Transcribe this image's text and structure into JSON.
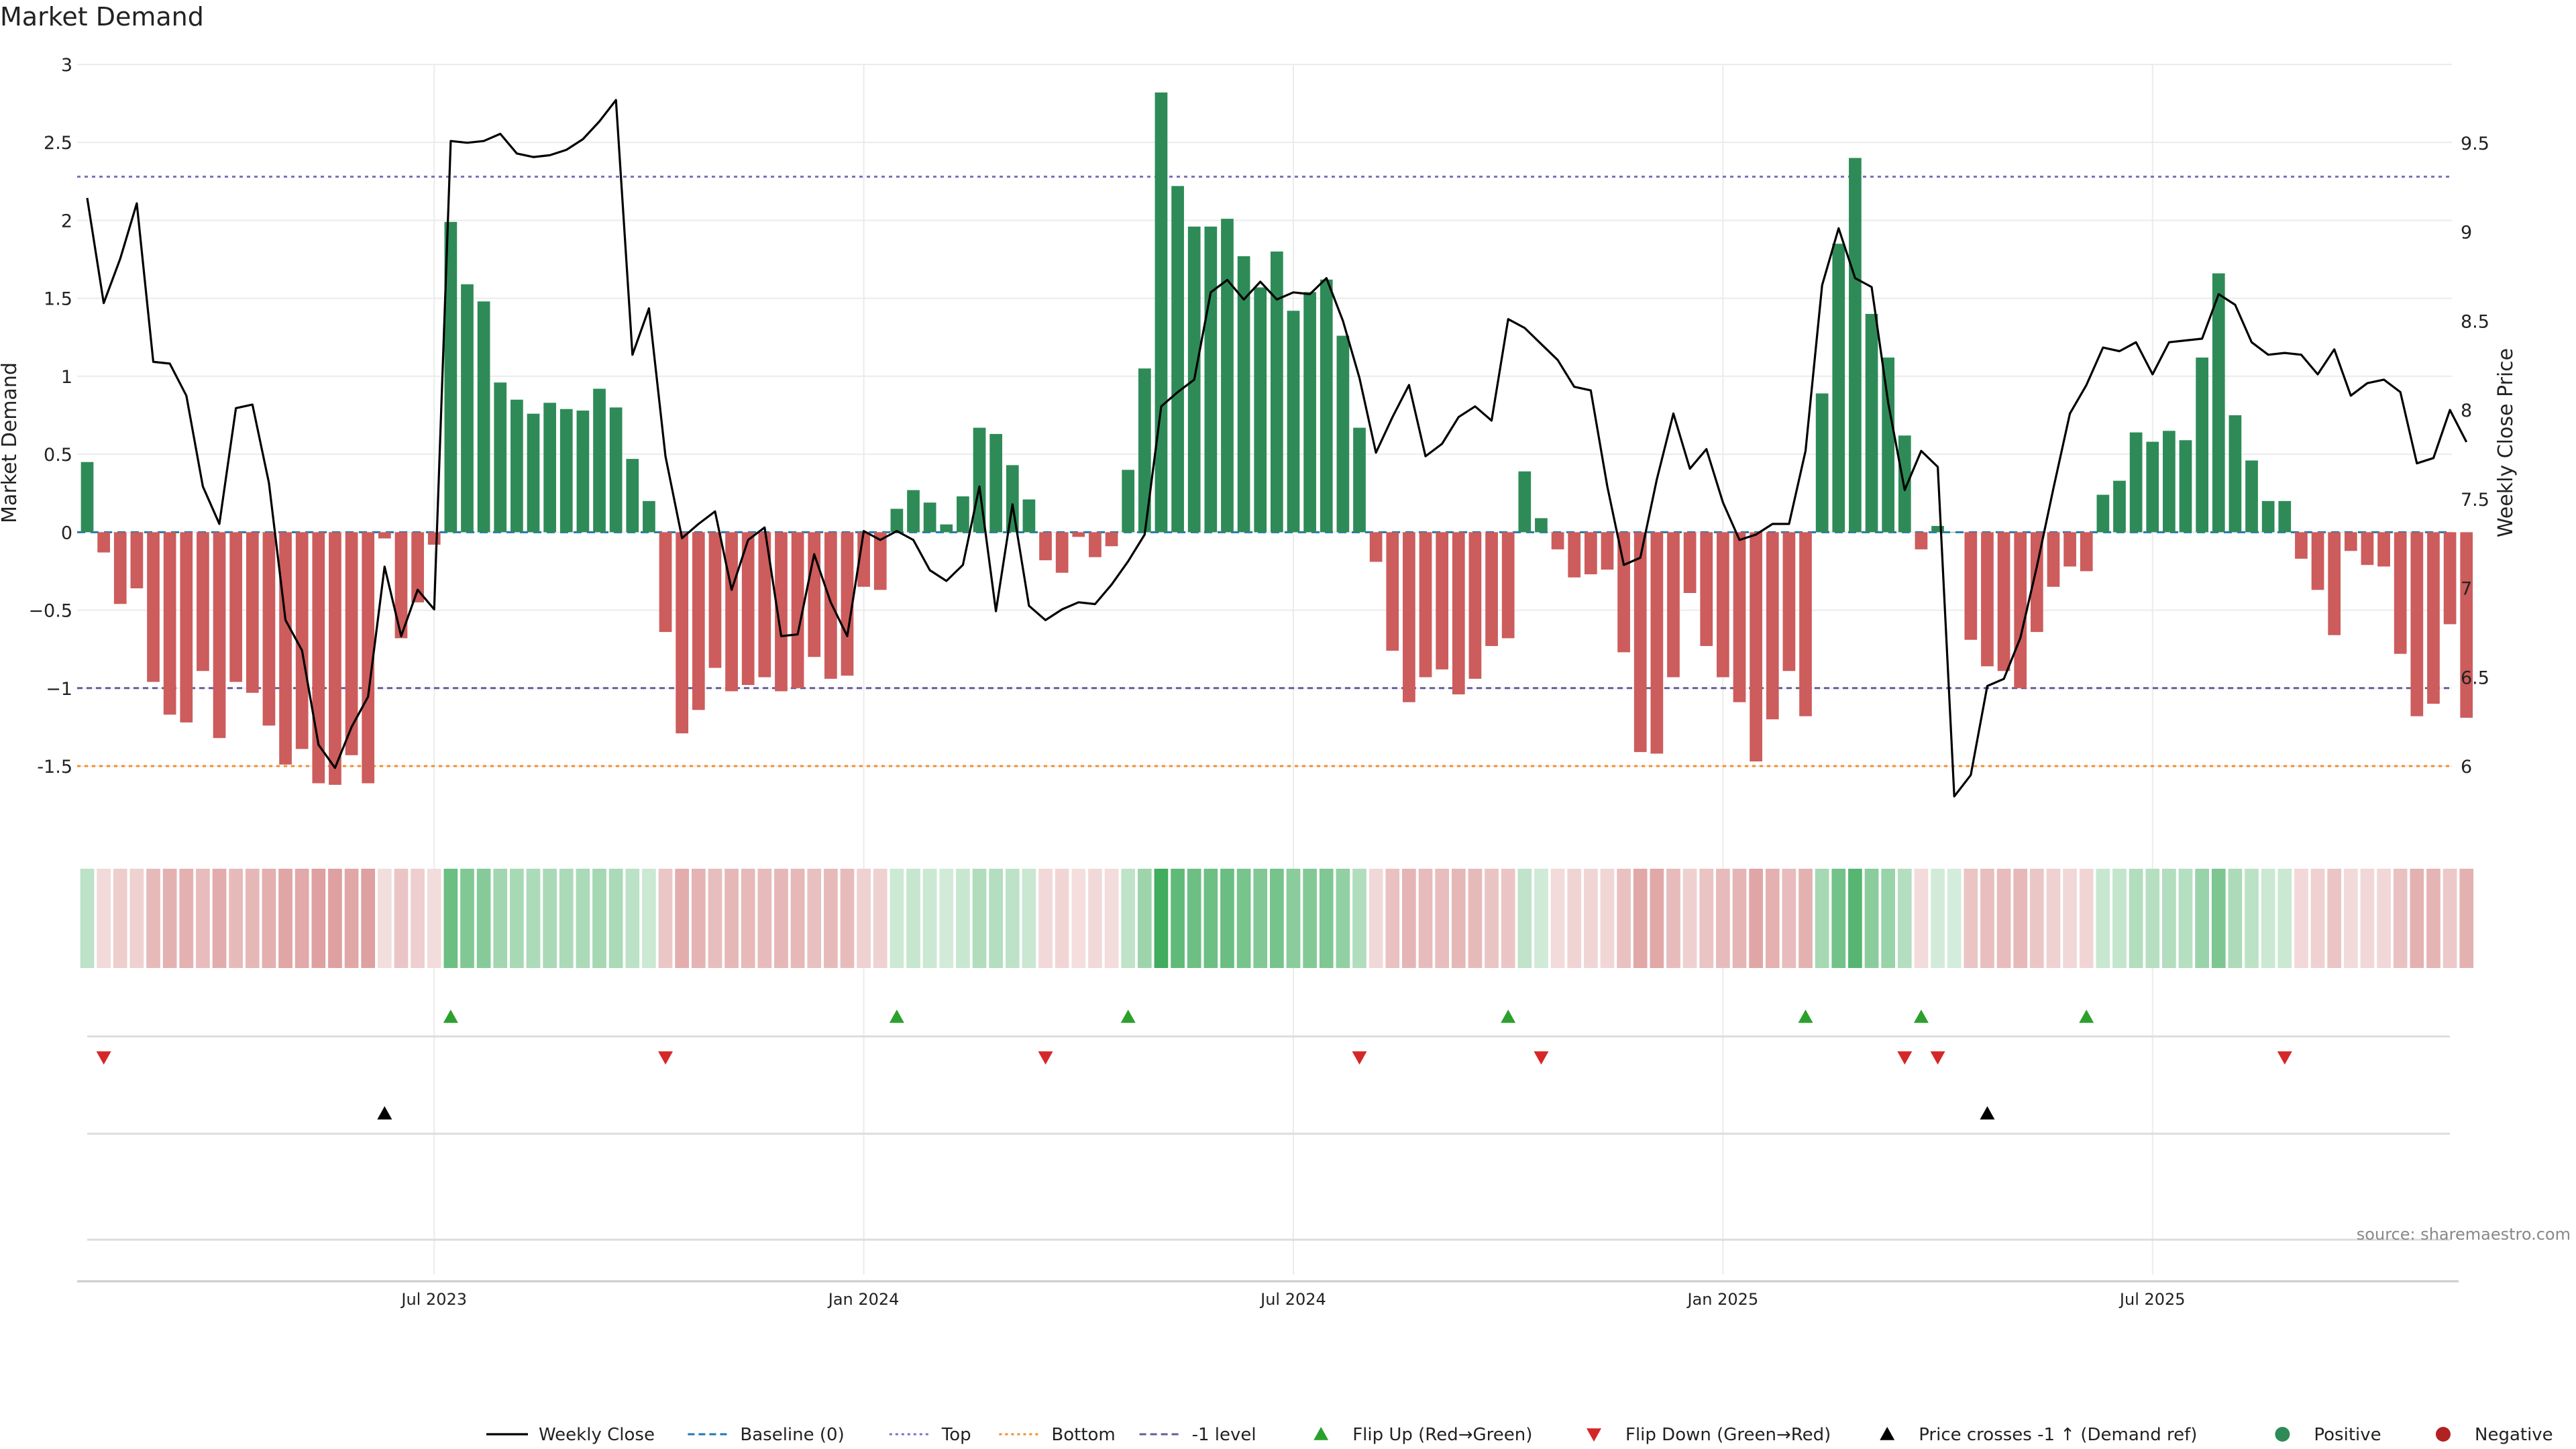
{
  "chart_data": {
    "type": "bar",
    "title": "Market Demand",
    "ylabel": "Market Demand",
    "y2label": "Weekly Close Price",
    "ylim": [
      -1.9,
      3.0
    ],
    "y2lim": [
      5.65,
      9.94
    ],
    "y_ticks": [
      "-1.5",
      "−1",
      "−0.5",
      "0",
      "0.5",
      "1",
      "1.5",
      "2",
      "2.5",
      "3"
    ],
    "y_tick_values": [
      -1.5,
      -1,
      -0.5,
      0,
      0.5,
      1,
      1.5,
      2,
      2.5,
      3
    ],
    "y2_ticks": [
      "6",
      "6.5",
      "7",
      "7.5",
      "8",
      "8.5",
      "9",
      "9.5"
    ],
    "y2_tick_values": [
      6,
      6.5,
      7,
      7.5,
      8,
      8.5,
      9,
      9.5
    ],
    "x_ticks": [
      "Jul 2023",
      "Jan 2024",
      "Jul 2024",
      "Jan 2025",
      "Jul 2025"
    ],
    "x_tick_week_index": [
      21,
      47,
      73,
      99,
      125
    ],
    "first_week": "2023-02-13",
    "grid": true,
    "reference_lines": [
      {
        "name": "Top",
        "value": 2.28,
        "color": "#7b6fbf",
        "style": "dotted"
      },
      {
        "name": "Bottom",
        "value": -1.5,
        "color": "#f28e2b",
        "style": "dotted"
      },
      {
        "name": "-1 level",
        "value": -1.0,
        "color": "#6a5a9a",
        "style": "dashed"
      },
      {
        "name": "Baseline (0)",
        "value": 0,
        "color": "#1f77b4",
        "style": "dashed"
      }
    ],
    "demand": [
      0.45,
      -0.13,
      -0.46,
      -0.36,
      -0.96,
      -1.17,
      -1.22,
      -0.89,
      -1.32,
      -0.96,
      -1.03,
      -1.24,
      -1.49,
      -1.39,
      -1.61,
      -1.62,
      -1.43,
      -1.61,
      -0.04,
      -0.68,
      -0.45,
      -0.08,
      1.99,
      1.59,
      1.48,
      0.96,
      0.85,
      0.76,
      0.83,
      0.79,
      0.78,
      0.92,
      0.8,
      0.47,
      0.2,
      -0.64,
      -1.29,
      -1.14,
      -0.87,
      -1.02,
      -0.98,
      -0.93,
      -1.02,
      -1.0,
      -0.8,
      -0.94,
      -0.92,
      -0.35,
      -0.37,
      0.15,
      0.27,
      0.19,
      0.05,
      0.23,
      0.67,
      0.63,
      0.43,
      0.21,
      -0.18,
      -0.26,
      -0.03,
      -0.16,
      -0.09,
      0.4,
      1.05,
      2.82,
      2.22,
      1.96,
      1.96,
      2.01,
      1.77,
      1.57,
      1.8,
      1.42,
      1.54,
      1.62,
      1.26,
      0.67,
      -0.19,
      -0.76,
      -1.09,
      -0.93,
      -0.88,
      -1.04,
      -0.94,
      -0.73,
      -0.68,
      0.39,
      0.09,
      -0.11,
      -0.29,
      -0.27,
      -0.24,
      -0.77,
      -1.41,
      -1.42,
      -0.93,
      -0.39,
      -0.73,
      -0.93,
      -1.09,
      -1.47,
      -1.2,
      -0.89,
      -1.18,
      0.89,
      1.85,
      2.4,
      1.4,
      1.12,
      0.62,
      -0.11,
      0.04,
      0.0,
      -0.69,
      -0.86,
      -0.89,
      -1.0,
      -0.64,
      -0.35,
      -0.22,
      -0.25,
      0.24,
      0.33,
      0.64,
      0.58,
      0.65,
      0.59,
      1.12,
      1.66,
      0.75,
      0.46,
      0.2,
      0.2,
      -0.17,
      -0.37,
      -0.66,
      -0.12,
      -0.21,
      -0.22,
      -0.78,
      -1.18,
      -1.1,
      -0.59,
      -1.19
    ],
    "weekly_close": [
      9.19,
      8.6,
      8.85,
      9.16,
      8.27,
      8.26,
      8.08,
      7.57,
      7.36,
      8.01,
      8.03,
      7.59,
      6.82,
      6.65,
      6.12,
      5.99,
      6.22,
      6.39,
      7.12,
      6.73,
      6.99,
      6.88,
      9.51,
      9.5,
      9.51,
      9.55,
      9.44,
      9.42,
      9.43,
      9.46,
      9.52,
      9.62,
      9.74,
      8.31,
      8.57,
      7.74,
      7.28,
      7.36,
      7.43,
      6.99,
      7.27,
      7.34,
      6.73,
      6.74,
      7.19,
      6.92,
      6.73,
      7.32,
      7.27,
      7.32,
      7.27,
      7.1,
      7.04,
      7.13,
      7.57,
      6.87,
      7.47,
      6.9,
      6.82,
      6.88,
      6.92,
      6.91,
      7.02,
      7.15,
      7.3,
      8.02,
      8.1,
      8.17,
      8.66,
      8.73,
      8.62,
      8.72,
      8.62,
      8.66,
      8.65,
      8.74,
      8.5,
      8.18,
      7.76,
      7.96,
      8.14,
      7.74,
      7.81,
      7.96,
      8.02,
      7.94,
      8.51,
      8.46,
      8.37,
      8.28,
      8.13,
      8.11,
      7.57,
      7.13,
      7.17,
      7.61,
      7.98,
      7.67,
      7.78,
      7.48,
      7.27,
      7.3,
      7.36,
      7.36,
      7.77,
      8.7,
      9.02,
      8.74,
      8.69,
      8.04,
      7.55,
      7.77,
      7.68,
      5.83,
      5.95,
      6.45,
      6.49,
      6.72,
      7.12,
      7.56,
      7.98,
      8.14,
      8.35,
      8.33,
      8.38,
      8.2,
      8.38,
      8.39,
      8.4,
      8.65,
      8.59,
      8.38,
      8.31,
      8.32,
      8.31,
      8.2,
      8.34,
      8.08,
      8.15,
      8.17,
      8.1,
      7.7,
      7.73,
      8.0,
      7.82
    ],
    "flip_up_week_index": [
      22,
      49,
      63,
      86,
      104,
      111,
      121
    ],
    "flip_down_week_index": [
      1,
      35,
      58,
      77,
      88,
      110,
      112,
      133
    ],
    "price_cross_week_index": [
      18,
      115
    ],
    "colors": {
      "positive": "#2e8b57",
      "negative": "#cd5c5c",
      "line": "#000000",
      "flip_up": "#2ca02c",
      "flip_down": "#d62728",
      "cross": "#000000"
    }
  },
  "legend": {
    "items": [
      {
        "label": "Weekly Close",
        "marker": "line",
        "color": "#000000"
      },
      {
        "label": "Baseline (0)",
        "marker": "dash",
        "color": "#1f77b4"
      },
      {
        "label": "Top",
        "marker": "dot",
        "color": "#7b6fbf"
      },
      {
        "label": "Bottom",
        "marker": "dot",
        "color": "#f28e2b"
      },
      {
        "label": "-1 level",
        "marker": "dash",
        "color": "#6a5a9a"
      },
      {
        "label": "Flip Up (Red→Green)",
        "marker": "tri-up",
        "color": "#2ca02c"
      },
      {
        "label": "Flip Down (Green→Red)",
        "marker": "tri-down",
        "color": "#d62728"
      },
      {
        "label": "Price crosses -1 ↑ (Demand ref)",
        "marker": "tri-up",
        "color": "#000000"
      },
      {
        "label": "Positive",
        "marker": "circle",
        "color": "#2e8b57"
      },
      {
        "label": "Negative",
        "marker": "circle",
        "color": "#b22222"
      }
    ]
  },
  "source": "source: sharemaestro.com"
}
